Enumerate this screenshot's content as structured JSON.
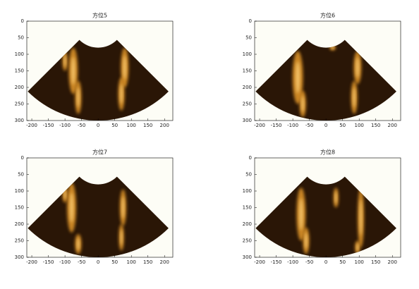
{
  "chart_data": [
    {
      "type": "image",
      "title": "方位5",
      "xlim": [
        -215,
        225
      ],
      "ylim": [
        0,
        300
      ],
      "y_inverted": true,
      "xticks": [
        -200,
        -150,
        -100,
        -50,
        0,
        50,
        100,
        150,
        200
      ],
      "yticks": [
        0,
        50,
        100,
        150,
        200,
        250,
        300
      ]
    },
    {
      "type": "image",
      "title": "方位6",
      "xlim": [
        -215,
        225
      ],
      "ylim": [
        0,
        300
      ],
      "y_inverted": true,
      "xticks": [
        -200,
        -150,
        -100,
        -50,
        0,
        50,
        100,
        150,
        200
      ],
      "yticks": [
        0,
        50,
        100,
        150,
        200,
        250,
        300
      ]
    },
    {
      "type": "image",
      "title": "方位7",
      "xlim": [
        -215,
        225
      ],
      "ylim": [
        0,
        300
      ],
      "y_inverted": true,
      "xticks": [
        -200,
        -150,
        -100,
        -50,
        0,
        50,
        100,
        150,
        200
      ],
      "yticks": [
        0,
        50,
        100,
        150,
        200,
        250,
        300
      ]
    },
    {
      "type": "image",
      "title": "方位8",
      "xlim": [
        -215,
        225
      ],
      "ylim": [
        0,
        300
      ],
      "y_inverted": true,
      "xticks": [
        -200,
        -150,
        -100,
        -50,
        0,
        50,
        100,
        150,
        200
      ],
      "yticks": [
        0,
        50,
        100,
        150,
        200,
        250,
        300
      ]
    }
  ]
}
